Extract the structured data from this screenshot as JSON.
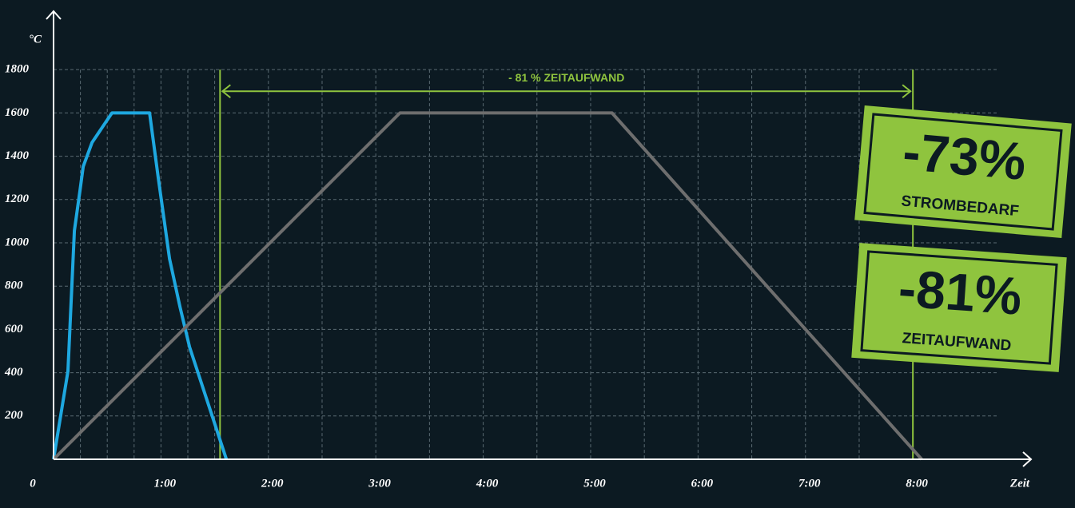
{
  "chart_data": {
    "type": "line",
    "x_label": "Zeit",
    "y_label": "°C",
    "xlim": [
      0,
      9.1
    ],
    "ylim": [
      0,
      2070
    ],
    "xticks": [
      0,
      {
        "value": 1,
        "label": "1:00"
      },
      {
        "value": 2,
        "label": "2:00"
      },
      {
        "value": 3,
        "label": "3:00"
      },
      {
        "value": 4,
        "label": "4:00"
      },
      {
        "value": 5,
        "label": "5:00"
      },
      {
        "value": 6,
        "label": "6:00"
      },
      {
        "value": 7,
        "label": "7:00"
      },
      {
        "value": 8,
        "label": "8:00"
      }
    ],
    "xgrid": [
      0.25,
      0.5,
      0.75,
      1,
      1.25,
      1.5,
      2,
      2.5,
      3,
      3.5,
      4,
      4.5,
      5,
      5.5,
      6,
      6.5,
      7,
      7.5,
      8
    ],
    "yticks": [
      200,
      400,
      600,
      800,
      1000,
      1200,
      1400,
      1600,
      1800
    ],
    "grid": true,
    "series": [
      {
        "color": "#1ea8e0",
        "x": [
          0,
          0.134,
          0.194,
          0.246,
          0.276,
          0.358,
          0.544,
          0.894,
          0.976,
          1.08,
          1.177,
          1.266,
          1.609
        ],
        "values": [
          0,
          407,
          1056,
          1241,
          1352,
          1463,
          1600,
          1600,
          1296,
          926,
          704,
          519,
          0
        ]
      },
      {
        "color": "#6e6e6e",
        "x": [
          0,
          3.225,
          5.199,
          8.082
        ],
        "values": [
          0,
          1600,
          1600,
          0
        ]
      }
    ],
    "markers": {
      "color": "#8fc43e",
      "x": [
        1.55,
        8.0
      ],
      "label": "- 81 % ZEITAUFWAND",
      "label_y": 1700
    },
    "stamps": [
      {
        "value": "-73%",
        "caption": "STROMBEDARF"
      },
      {
        "value": "-81%",
        "caption": "ZEITAUFWAND"
      }
    ]
  }
}
